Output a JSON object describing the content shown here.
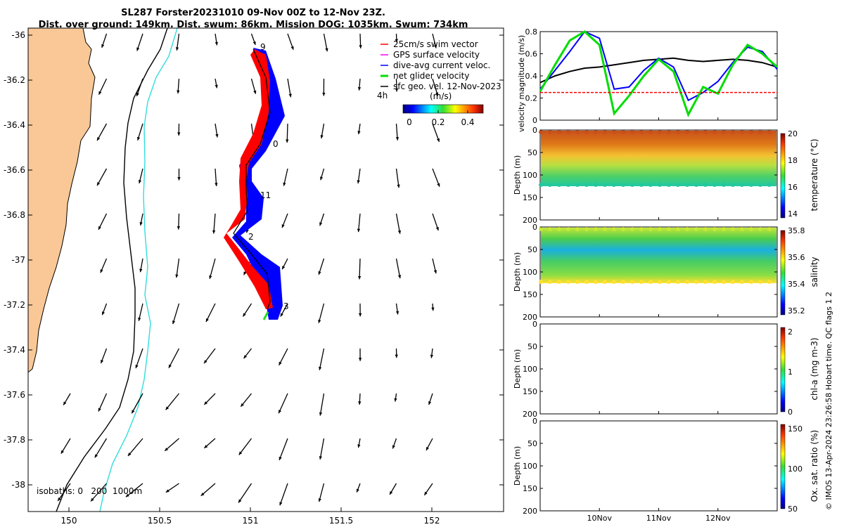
{
  "title": {
    "line1": "SL287 Forster20231010 09-Nov 00Z to 12-Nov 23Z.",
    "line2": "Dist. over ground: 149km. Dist. swum: 86km. Mission DOG: 1035km. Swum: 734km"
  },
  "map": {
    "lat_ticks": [
      "-36",
      "-36.2",
      "-36.4",
      "-36.6",
      "-36.8",
      "-37",
      "-37.2",
      "-37.4",
      "-37.6",
      "-37.8",
      "-38"
    ],
    "lon_ticks": [
      "150",
      "150.5",
      "151",
      "151.5",
      "152"
    ],
    "legend": [
      {
        "label": "25cm/s swim vector",
        "color": "#ff0000"
      },
      {
        "label": "GPS surface velocity",
        "color": "#ff00ff"
      },
      {
        "label": "dive-avg current veloc.",
        "color": "#0000ff"
      },
      {
        "label": "net glider velocity",
        "color": "#00dd00"
      },
      {
        "label": "sfc geo. vel. 12-Nov-2023",
        "color": "#000000"
      }
    ],
    "ref_arrow_label": "4h",
    "colorbar": {
      "label": "(m/s)",
      "ticks": [
        "0",
        "0.2",
        "0.4"
      ]
    },
    "isobaths_label": "isobaths: 0   200  1000m",
    "track_labels": [
      "9",
      "0",
      "11",
      "2",
      "3"
    ],
    "land_color": "#f9c896",
    "isobath_200_color": "#000000",
    "isobath_1000_color": "#33dddd"
  },
  "chart_data": [
    {
      "type": "line",
      "ylabel": "velocity magnitude (m/s)",
      "ylim": [
        0,
        0.8
      ],
      "yticks": [
        "0",
        "0.2",
        "0.4",
        "0.6",
        "0.8"
      ],
      "x": [
        9.0,
        9.25,
        9.5,
        9.75,
        10.0,
        10.25,
        10.5,
        10.75,
        11.0,
        11.25,
        11.5,
        11.75,
        12.0,
        12.25,
        12.5,
        12.75,
        13.0
      ],
      "series": [
        {
          "name": "",
          "color": "#000000",
          "values": [
            0.34,
            0.4,
            0.44,
            0.47,
            0.48,
            0.5,
            0.52,
            0.54,
            0.55,
            0.56,
            0.54,
            0.53,
            0.54,
            0.55,
            0.54,
            0.52,
            0.48
          ]
        },
        {
          "name": "",
          "color": "#0000ff",
          "values": [
            0.28,
            0.45,
            0.62,
            0.8,
            0.74,
            0.28,
            0.3,
            0.45,
            0.56,
            0.48,
            0.18,
            0.25,
            0.35,
            0.52,
            0.66,
            0.62,
            0.46
          ]
        },
        {
          "name": "",
          "color": "#00dd00",
          "values": [
            0.26,
            0.5,
            0.72,
            0.8,
            0.68,
            0.06,
            0.22,
            0.4,
            0.55,
            0.44,
            0.05,
            0.3,
            0.24,
            0.5,
            0.68,
            0.6,
            0.48
          ]
        },
        {
          "name": "",
          "color": "#ff0000",
          "values": [
            0.25,
            0.25,
            0.25,
            0.25,
            0.25,
            0.25,
            0.25,
            0.25,
            0.25,
            0.25,
            0.25,
            0.25,
            0.25,
            0.25,
            0.25,
            0.25,
            0.25
          ]
        }
      ]
    },
    {
      "type": "heatmap",
      "ylabel": "Depth (m)",
      "yticks": [
        "0",
        "50",
        "100",
        "150",
        "200"
      ],
      "colorbar_label": "temperature (°C)",
      "colorbar_ticks": [
        "14",
        "16",
        "18",
        "20"
      ]
    },
    {
      "type": "heatmap",
      "ylabel": "Depth (m)",
      "yticks": [
        "0",
        "50",
        "100",
        "150",
        "200"
      ],
      "colorbar_label": "salinity",
      "colorbar_ticks": [
        "35.2",
        "35.4",
        "35.6",
        "35.8"
      ]
    },
    {
      "type": "heatmap",
      "ylabel": "Depth (m)",
      "yticks": [
        "0",
        "50",
        "100",
        "150",
        "200"
      ],
      "colorbar_label": "chl-a (mg m-3)",
      "colorbar_ticks": [
        "0",
        "1",
        "2"
      ]
    },
    {
      "type": "heatmap",
      "ylabel": "Depth (m)",
      "yticks": [
        "0",
        "50",
        "100",
        "150",
        "200"
      ],
      "colorbar_label": "Ox. sat. ratio (%)",
      "colorbar_ticks": [
        "50",
        "100",
        "150"
      ]
    }
  ],
  "time_axis": {
    "ticks": [
      "10Nov",
      "11Nov",
      "12Nov"
    ]
  },
  "footer": "© IMOS 13-Apr-2024 23:26:58 Hobart time. QC flags 1  2"
}
